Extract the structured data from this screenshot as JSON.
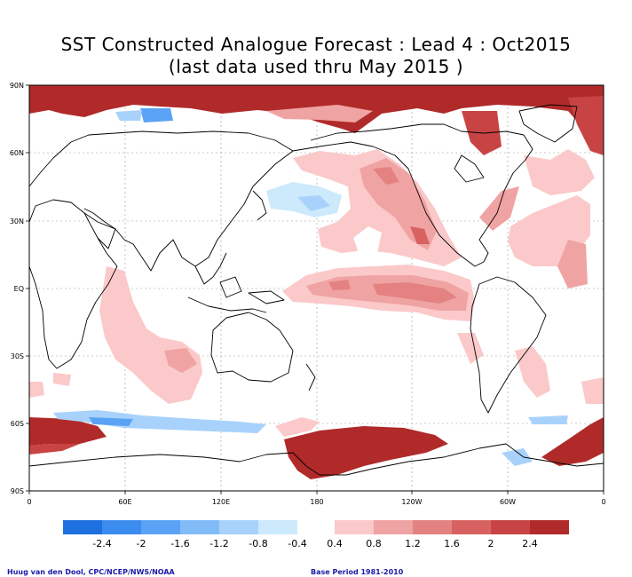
{
  "title": "SST Constructed Analogue Forecast : Lead 4 : Oct2015",
  "subtitle": "(last data used thru May 2015 )",
  "axes": {
    "lon_labels": [
      "0",
      "60E",
      "120E",
      "180",
      "120W",
      "60W",
      "0"
    ],
    "lat_labels": [
      "90N",
      "60N",
      "30N",
      "EQ",
      "30S",
      "60S",
      "90S"
    ]
  },
  "colorbar": {
    "labels": [
      "-2.4",
      "-2",
      "-1.6",
      "-1.2",
      "-0.8",
      "-0.4",
      "0.4",
      "0.8",
      "1.2",
      "1.6",
      "2",
      "2.4"
    ],
    "neg_colors": [
      "#1e6fe0",
      "#3c8cf0",
      "#5aa2f5",
      "#82bcf8",
      "#a8d2fb",
      "#cdeafd"
    ],
    "pos_colors": [
      "#fbc9c9",
      "#f0a3a3",
      "#e48282",
      "#d86262",
      "#c84444",
      "#b02a2a"
    ]
  },
  "footer": {
    "credit": "Huug van den Dool, CPC/NCEP/NWS/NOAA",
    "base_period": "Base Period 1981-2010"
  }
}
